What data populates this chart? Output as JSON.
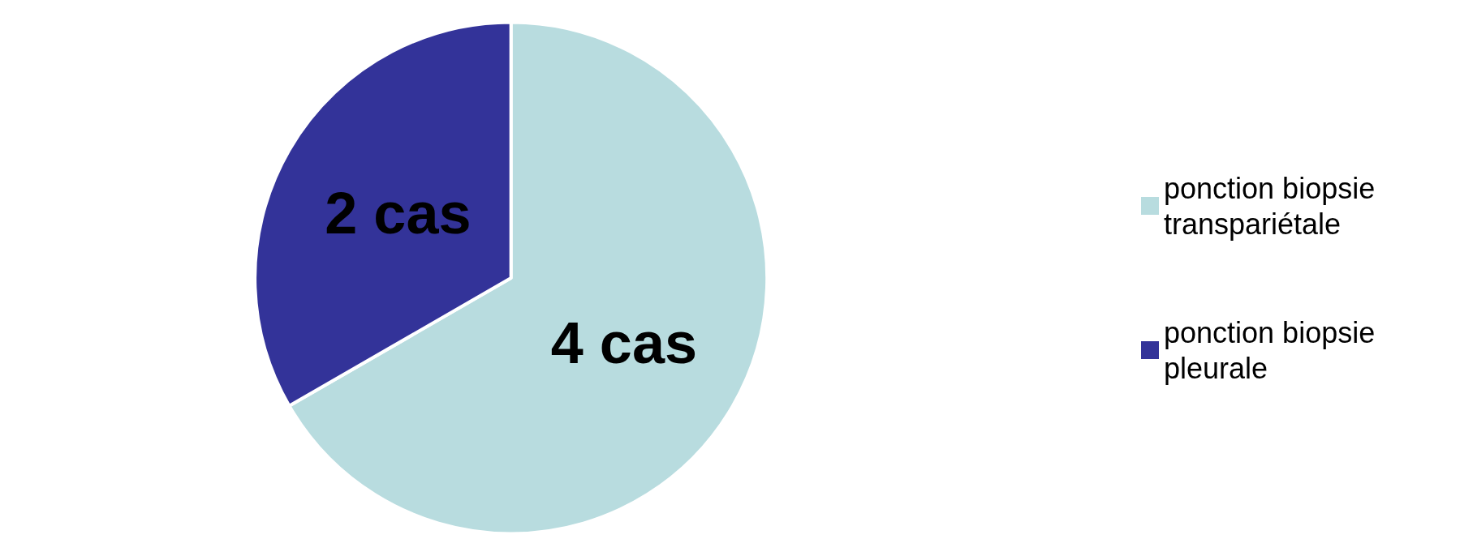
{
  "chart_data": {
    "type": "pie",
    "categories": [
      "ponction biopsie transpariétale",
      "ponction biopsie pleurale"
    ],
    "values": [
      4,
      2
    ],
    "colors": [
      "#b8dcdf",
      "#333399"
    ],
    "value_labels": [
      "4 cas",
      "2 cas"
    ],
    "legend": "right"
  }
}
